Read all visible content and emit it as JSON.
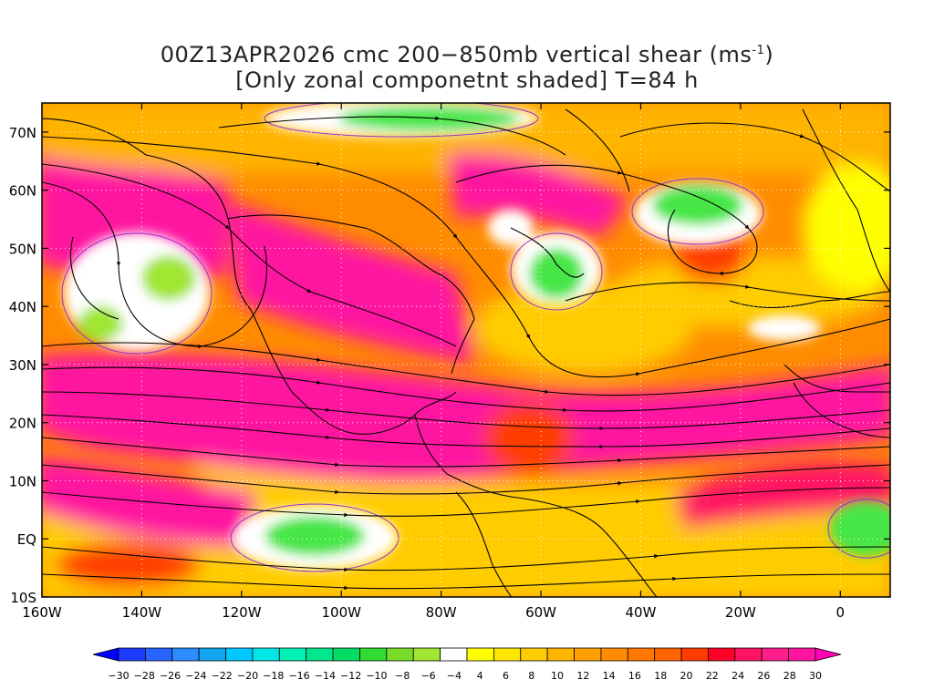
{
  "title": {
    "line1_prefix": "00Z13APR2026 cmc 200−850mb vertical shear (ms",
    "line1_sup": "-1",
    "line1_suffix": ")",
    "line2": "[Only zonal componetnt shaded] T=84 h"
  },
  "map": {
    "lon_range": [
      -160,
      10
    ],
    "lat_range": [
      -10,
      75
    ],
    "lat_ticks": [
      {
        "value": 70,
        "label": "70N"
      },
      {
        "value": 60,
        "label": "60N"
      },
      {
        "value": 50,
        "label": "50N"
      },
      {
        "value": 40,
        "label": "40N"
      },
      {
        "value": 30,
        "label": "30N"
      },
      {
        "value": 20,
        "label": "20N"
      },
      {
        "value": 10,
        "label": "10N"
      },
      {
        "value": 0,
        "label": "EQ"
      },
      {
        "value": -10,
        "label": "10S"
      }
    ],
    "lon_ticks": [
      {
        "value": -160,
        "label": "160W"
      },
      {
        "value": -140,
        "label": "140W"
      },
      {
        "value": -120,
        "label": "120W"
      },
      {
        "value": -100,
        "label": "100W"
      },
      {
        "value": -80,
        "label": "80W"
      },
      {
        "value": -60,
        "label": "60W"
      },
      {
        "value": -40,
        "label": "40W"
      },
      {
        "value": -20,
        "label": "20W"
      },
      {
        "value": 0,
        "label": "0"
      }
    ],
    "grid": "dotted"
  },
  "colorbar": {
    "labels": [
      "−30",
      "−28",
      "−26",
      "−24",
      "−22",
      "−20",
      "−18",
      "−16",
      "−14",
      "−12",
      "−10",
      "−8",
      "−6",
      "−4",
      "4",
      "6",
      "8",
      "10",
      "12",
      "14",
      "16",
      "18",
      "20",
      "22",
      "24",
      "26",
      "28",
      "30"
    ],
    "colors": [
      "#0000ff",
      "#1e3cff",
      "#2864ff",
      "#2d8cff",
      "#14a5f0",
      "#00c8ff",
      "#00e6e6",
      "#00f0b4",
      "#00e68c",
      "#00dc64",
      "#32dc32",
      "#78dc28",
      "#a0e632",
      "#ffffff",
      "#ffff00",
      "#ffe600",
      "#ffcc00",
      "#ffb400",
      "#ffa000",
      "#ff8c00",
      "#ff7800",
      "#ff6400",
      "#ff3c00",
      "#ff0028",
      "#ff1464",
      "#ff1e8c",
      "#ff14a0",
      "#ff00b4"
    ]
  },
  "colors": {
    "jet_magenta": "#ff14a0",
    "orange": "#ff8c00",
    "yellow": "#ffe600",
    "green": "#46e646",
    "coast": "#000000",
    "contour_purple": "#9933cc",
    "streamline": "#000000"
  }
}
